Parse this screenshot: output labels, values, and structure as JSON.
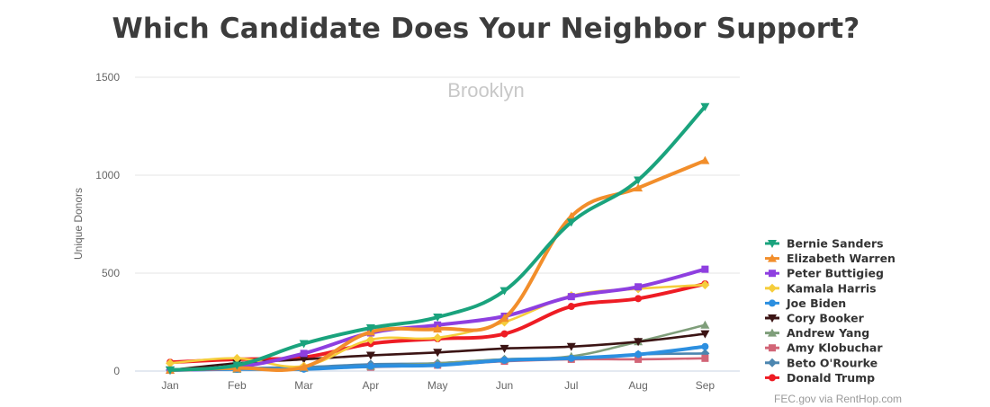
{
  "title": "Which Candidate Does Your Neighbor Support?",
  "source": "FEC.gov via RentHop.com",
  "chart_data": {
    "type": "line",
    "subtitle": "Brooklyn",
    "ylabel": "Unique Donors",
    "xlabel": "",
    "categories": [
      "Jan",
      "Feb",
      "Mar",
      "Apr",
      "May",
      "Jun",
      "Jul",
      "Aug",
      "Sep"
    ],
    "ylim": [
      0,
      1500
    ],
    "yticks": [
      0,
      500,
      1000,
      1500
    ],
    "grid": "horizontal",
    "legend_position": "right",
    "series": [
      {
        "name": "Bernie Sanders",
        "color": "#1aa37d",
        "marker": "triangle-down",
        "values": [
          5,
          30,
          140,
          220,
          275,
          410,
          760,
          975,
          1350
        ]
      },
      {
        "name": "Elizabeth Warren",
        "color": "#f28e2b",
        "marker": "triangle-up",
        "values": [
          5,
          15,
          20,
          200,
          215,
          270,
          790,
          935,
          1075
        ]
      },
      {
        "name": "Peter Buttigieg",
        "color": "#8e3fe0",
        "marker": "square",
        "values": [
          5,
          20,
          90,
          195,
          235,
          280,
          380,
          430,
          520
        ]
      },
      {
        "name": "Kamala Harris",
        "color": "#f5cd3c",
        "marker": "diamond",
        "values": [
          40,
          65,
          25,
          160,
          170,
          250,
          385,
          420,
          440
        ]
      },
      {
        "name": "Joe Biden",
        "color": "#2c8fe0",
        "marker": "circle",
        "values": [
          5,
          10,
          10,
          25,
          30,
          55,
          65,
          85,
          125
        ]
      },
      {
        "name": "Cory Booker",
        "color": "#3b1414",
        "marker": "triangle-down",
        "values": [
          5,
          40,
          60,
          80,
          95,
          115,
          125,
          150,
          190
        ]
      },
      {
        "name": "Andrew Yang",
        "color": "#7f9e7a",
        "marker": "triangle-up",
        "values": [
          5,
          10,
          15,
          25,
          40,
          60,
          75,
          150,
          235
        ]
      },
      {
        "name": "Amy Klobuchar",
        "color": "#d26577",
        "marker": "square",
        "values": [
          5,
          10,
          15,
          20,
          30,
          50,
          60,
          60,
          65
        ]
      },
      {
        "name": "Beto O'Rourke",
        "color": "#4c86b0",
        "marker": "diamond",
        "values": [
          5,
          15,
          20,
          35,
          40,
          60,
          65,
          85,
          90
        ]
      },
      {
        "name": "Donald Trump",
        "color": "#ee1c24",
        "marker": "circle",
        "values": [
          45,
          60,
          70,
          140,
          165,
          190,
          330,
          370,
          445
        ]
      }
    ]
  }
}
